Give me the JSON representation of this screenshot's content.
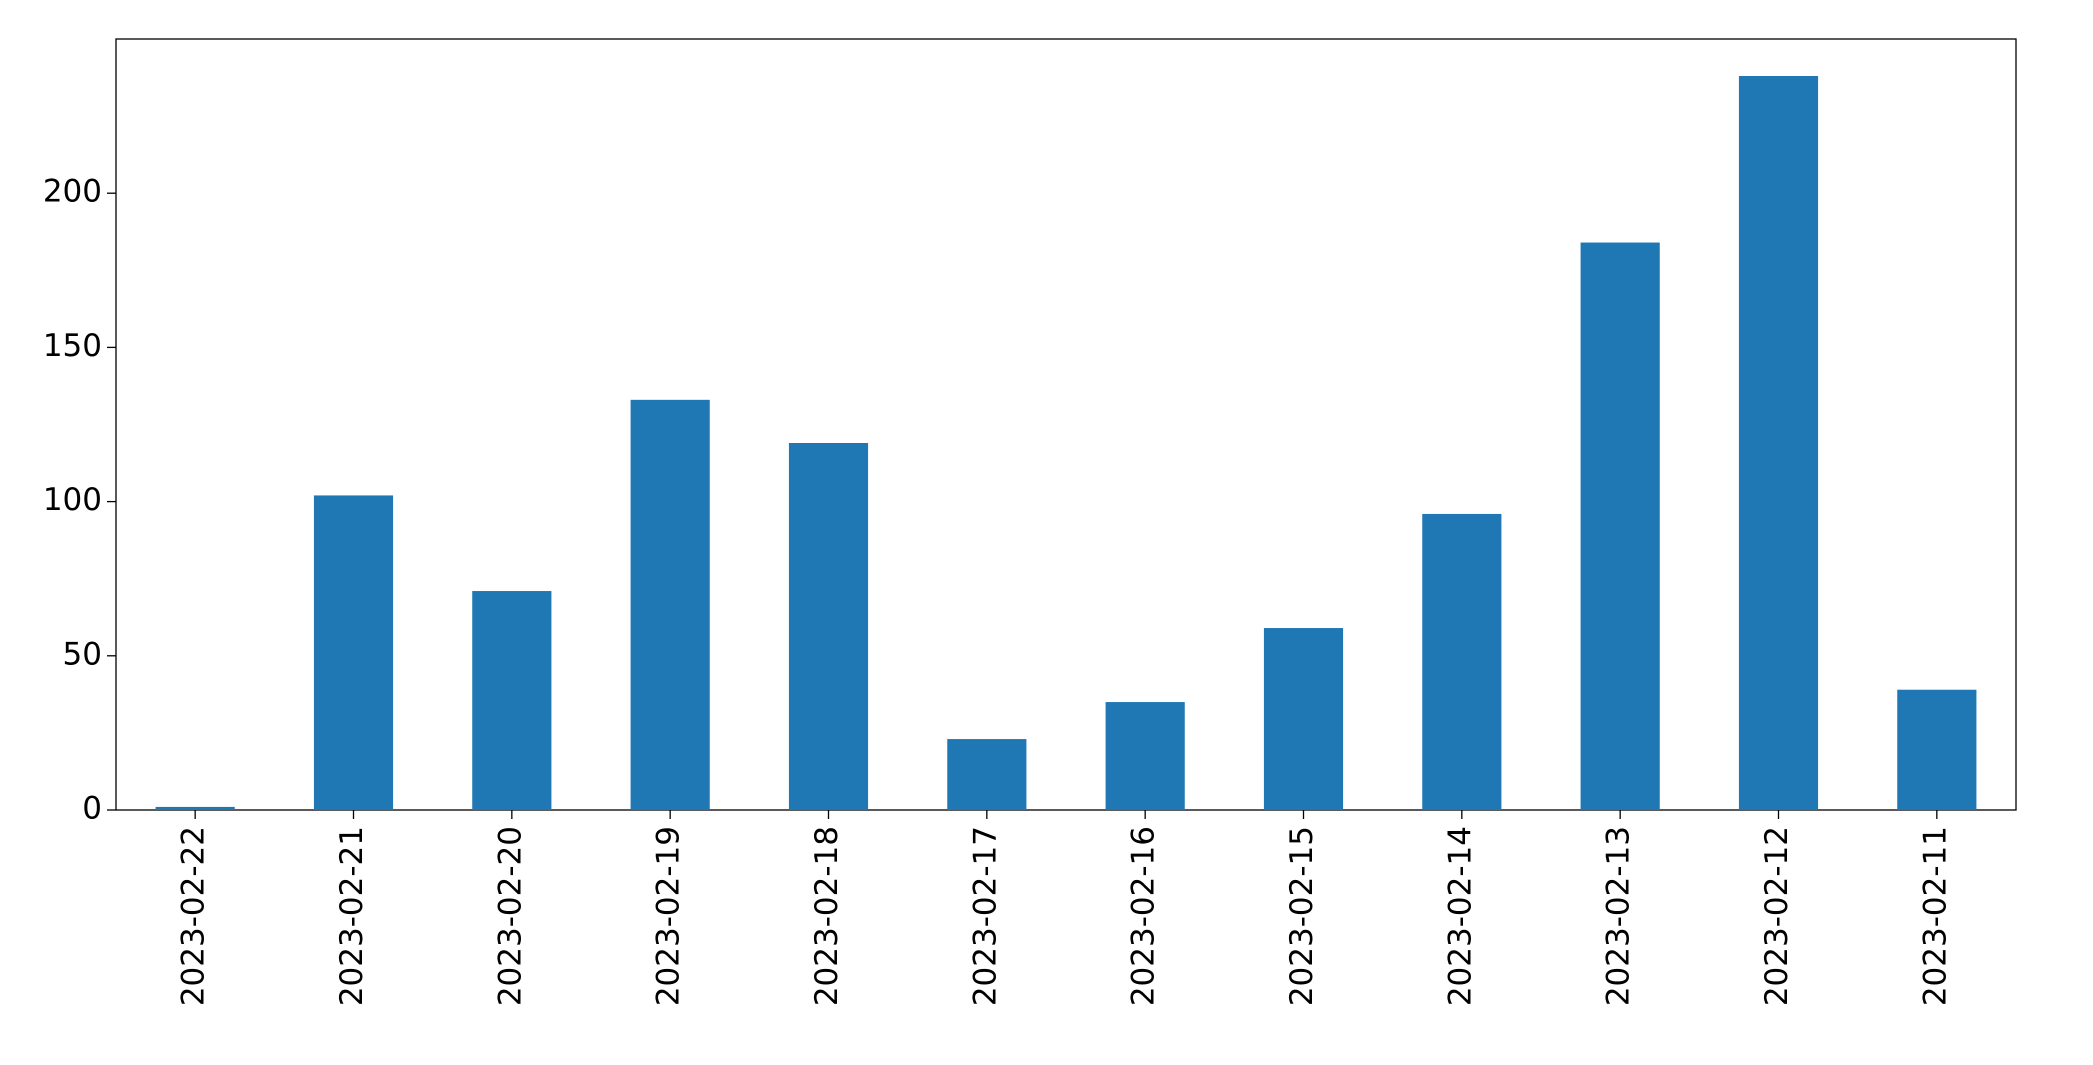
{
  "chart_data": {
    "type": "bar",
    "categories": [
      "2023-02-22",
      "2023-02-21",
      "2023-02-20",
      "2023-02-19",
      "2023-02-18",
      "2023-02-17",
      "2023-02-16",
      "2023-02-15",
      "2023-02-14",
      "2023-02-13",
      "2023-02-12",
      "2023-02-11"
    ],
    "values": [
      1,
      102,
      71,
      133,
      119,
      23,
      35,
      59,
      96,
      184,
      238,
      39
    ],
    "color": "#1f77b4",
    "ylim": [
      0,
      250
    ],
    "yticks": [
      0,
      50,
      100,
      150,
      200
    ],
    "grid": false
  }
}
